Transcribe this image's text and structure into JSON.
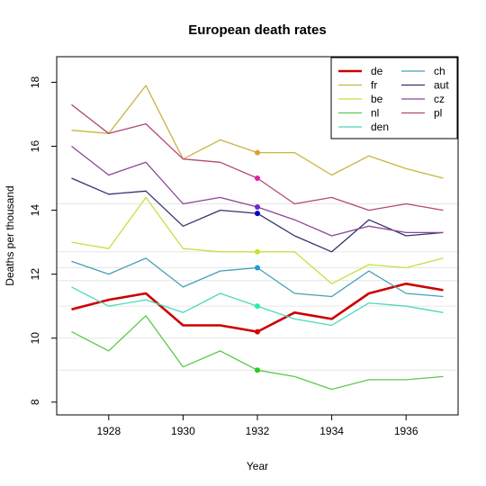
{
  "chart_data": {
    "type": "line",
    "title": "European death rates",
    "xlabel": "Year",
    "ylabel": "Deaths per thousand",
    "x": [
      1927,
      1928,
      1929,
      1930,
      1931,
      1932,
      1933,
      1934,
      1935,
      1936,
      1937
    ],
    "xlim": [
      1926.6,
      1937.4
    ],
    "ylim": [
      7.6,
      18.8
    ],
    "xticks": [
      "1928",
      "1930",
      "1932",
      "1934",
      "1936"
    ],
    "yticks": [
      "8",
      "10",
      "12",
      "14",
      "16",
      "18"
    ],
    "reference_lines": [
      9,
      10,
      11,
      11.8,
      12.2,
      12.7,
      14.2
    ],
    "highlight_x": 1932,
    "legend_position": "top-right",
    "series": [
      {
        "name": "de",
        "color": "#cc0000",
        "bold": true,
        "values": [
          10.9,
          11.2,
          11.4,
          10.4,
          10.4,
          10.2,
          10.8,
          10.6,
          11.4,
          11.7,
          11.5
        ]
      },
      {
        "name": "fr",
        "color": "#c8b441",
        "bold": false,
        "values": [
          16.5,
          16.4,
          17.9,
          15.6,
          16.2,
          15.8,
          15.8,
          15.1,
          15.7,
          15.3,
          15.0
        ]
      },
      {
        "name": "be",
        "color": "#c5e043",
        "bold": false,
        "values": [
          13.0,
          12.8,
          14.4,
          12.8,
          12.7,
          12.7,
          12.7,
          11.7,
          12.3,
          12.2,
          12.5
        ]
      },
      {
        "name": "nl",
        "color": "#5cc84a",
        "bold": false,
        "values": [
          10.2,
          9.6,
          10.7,
          9.1,
          9.6,
          9.0,
          8.8,
          8.4,
          8.7,
          8.7,
          8.8
        ]
      },
      {
        "name": "den",
        "color": "#4ed8bb",
        "bold": false,
        "values": [
          11.6,
          11.0,
          11.2,
          10.8,
          11.4,
          11.0,
          10.6,
          10.4,
          11.1,
          11.0,
          10.8
        ]
      },
      {
        "name": "ch",
        "color": "#46a0b4",
        "bold": false,
        "values": [
          12.4,
          12.0,
          12.5,
          11.6,
          12.1,
          12.2,
          11.4,
          11.3,
          12.1,
          11.4,
          11.3
        ]
      },
      {
        "name": "aut",
        "color": "#33336e",
        "bold": false,
        "values": [
          15.0,
          14.5,
          14.6,
          13.5,
          14.0,
          13.9,
          13.2,
          12.7,
          13.7,
          13.2,
          13.3
        ]
      },
      {
        "name": "cz",
        "color": "#8c4696",
        "bold": false,
        "values": [
          16.0,
          15.1,
          15.5,
          14.2,
          14.4,
          14.1,
          13.7,
          13.2,
          13.5,
          13.3,
          13.3
        ]
      },
      {
        "name": "pl",
        "color": "#b44678",
        "bold": false,
        "values": [
          17.3,
          16.4,
          16.7,
          15.6,
          15.5,
          15.0,
          14.2,
          14.4,
          14.0,
          14.2,
          14.0
        ]
      }
    ]
  },
  "point_colors": {
    "fr": "#e0a030",
    "be": "#c8e030",
    "nl": "#22cc22",
    "den": "#22eeaa",
    "ch": "#2299dd",
    "aut": "#0000cc",
    "cz": "#6a2ccc",
    "pl": "#dd22aa",
    "de": "#dd0000"
  }
}
